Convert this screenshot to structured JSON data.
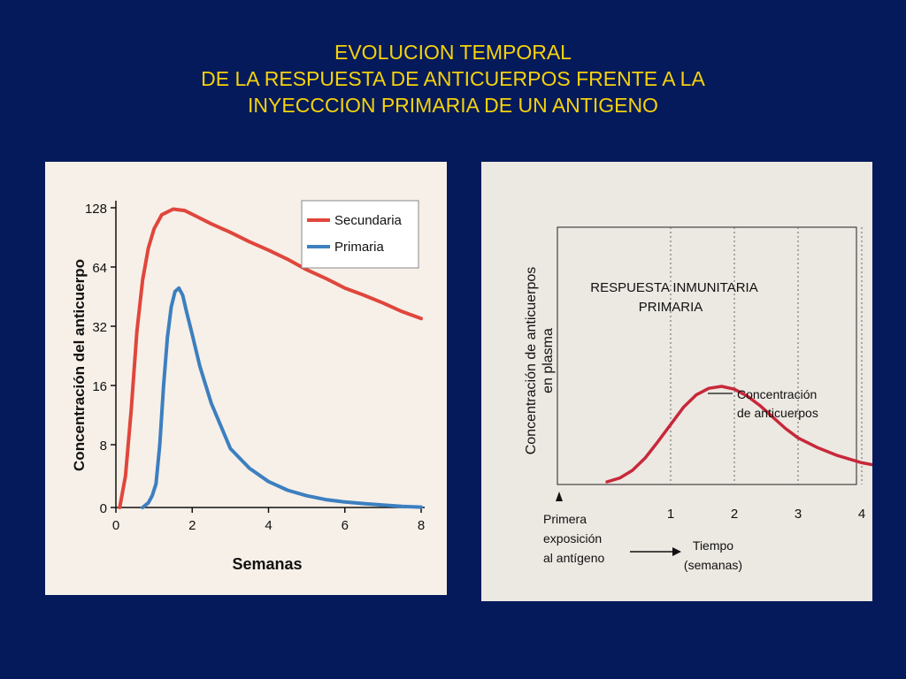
{
  "title": {
    "line1": "EVOLUCION TEMPORAL",
    "line2": "DE LA RESPUESTA DE ANTICUERPOS FRENTE A LA",
    "line3": "INYECCCION PRIMARIA DE UN ANTIGENO"
  },
  "colors": {
    "background": "#051a5a",
    "title": "#f5d20c",
    "secundaria": "#e0463c",
    "primaria": "#3d7fc0",
    "right_curve": "#c8283a"
  },
  "chart_data": [
    {
      "type": "line",
      "title": "",
      "xlabel": "Semanas",
      "ylabel": "Concentración del anticuerpo",
      "xlim": [
        0,
        8
      ],
      "y_scale": "log2",
      "yticks": [
        0,
        8,
        16,
        32,
        64,
        128
      ],
      "xticks": [
        0,
        2,
        4,
        6,
        8
      ],
      "legend_position": "top-right",
      "series": [
        {
          "name": "Secundaria",
          "x": [
            0.1,
            0.25,
            0.4,
            0.55,
            0.7,
            0.85,
            1.0,
            1.2,
            1.5,
            1.8,
            2.1,
            2.5,
            3.0,
            3.5,
            4.0,
            4.5,
            5.0,
            5.5,
            6.0,
            6.5,
            7.0,
            7.5,
            8.0
          ],
          "y": [
            0,
            4,
            12,
            30,
            55,
            80,
            100,
            118,
            126,
            124,
            116,
            106,
            96,
            86,
            78,
            70,
            62,
            56,
            50,
            46,
            42,
            38,
            35
          ]
        },
        {
          "name": "Primaria",
          "x": [
            0.7,
            0.85,
            0.95,
            1.05,
            1.15,
            1.25,
            1.35,
            1.45,
            1.55,
            1.65,
            1.75,
            1.85,
            2.0,
            2.2,
            2.5,
            3.0,
            3.5,
            4.0,
            4.5,
            5.0,
            5.5,
            6.0,
            6.5,
            7.0,
            7.5,
            8.0
          ],
          "y": [
            0,
            0.6,
            1.5,
            3,
            8,
            16,
            28,
            40,
            48,
            50,
            46,
            38,
            29,
            20,
            13,
            7.5,
            5,
            3.3,
            2.2,
            1.5,
            1.0,
            0.7,
            0.5,
            0.3,
            0.15,
            0.05
          ]
        }
      ]
    },
    {
      "type": "line",
      "title": "RESPUESTA INMUNITARIA PRIMARIA",
      "title_line1": "RESPUESTA INMUNITARIA",
      "title_line2": "PRIMARIA",
      "xlabel_line1": "Tiempo",
      "xlabel_line2": "(semanas)",
      "ylabel_line1": "Concentración de anticuerpos",
      "ylabel_line2": "en plasma",
      "xticks": [
        1,
        2,
        3,
        4
      ],
      "annotation_curve_line1": "Concentración",
      "annotation_curve_line2": "de anticuerpos",
      "annotation_start_line1": "Primera",
      "annotation_start_line2": "exposición",
      "annotation_start_line3": "al antígeno",
      "grid": "vertical dotted",
      "series": [
        {
          "name": "Concentración de anticuerpos",
          "x": [
            0,
            0.2,
            0.4,
            0.6,
            0.8,
            1.0,
            1.2,
            1.4,
            1.6,
            1.8,
            2.0,
            2.2,
            2.4,
            2.6,
            2.8,
            3.0,
            3.3,
            3.6,
            4.0,
            4.4,
            4.8
          ],
          "y": [
            0.0,
            0.04,
            0.12,
            0.25,
            0.42,
            0.6,
            0.78,
            0.91,
            0.98,
            1.0,
            0.97,
            0.9,
            0.8,
            0.68,
            0.56,
            0.46,
            0.36,
            0.28,
            0.2,
            0.15,
            0.12
          ]
        }
      ]
    }
  ]
}
